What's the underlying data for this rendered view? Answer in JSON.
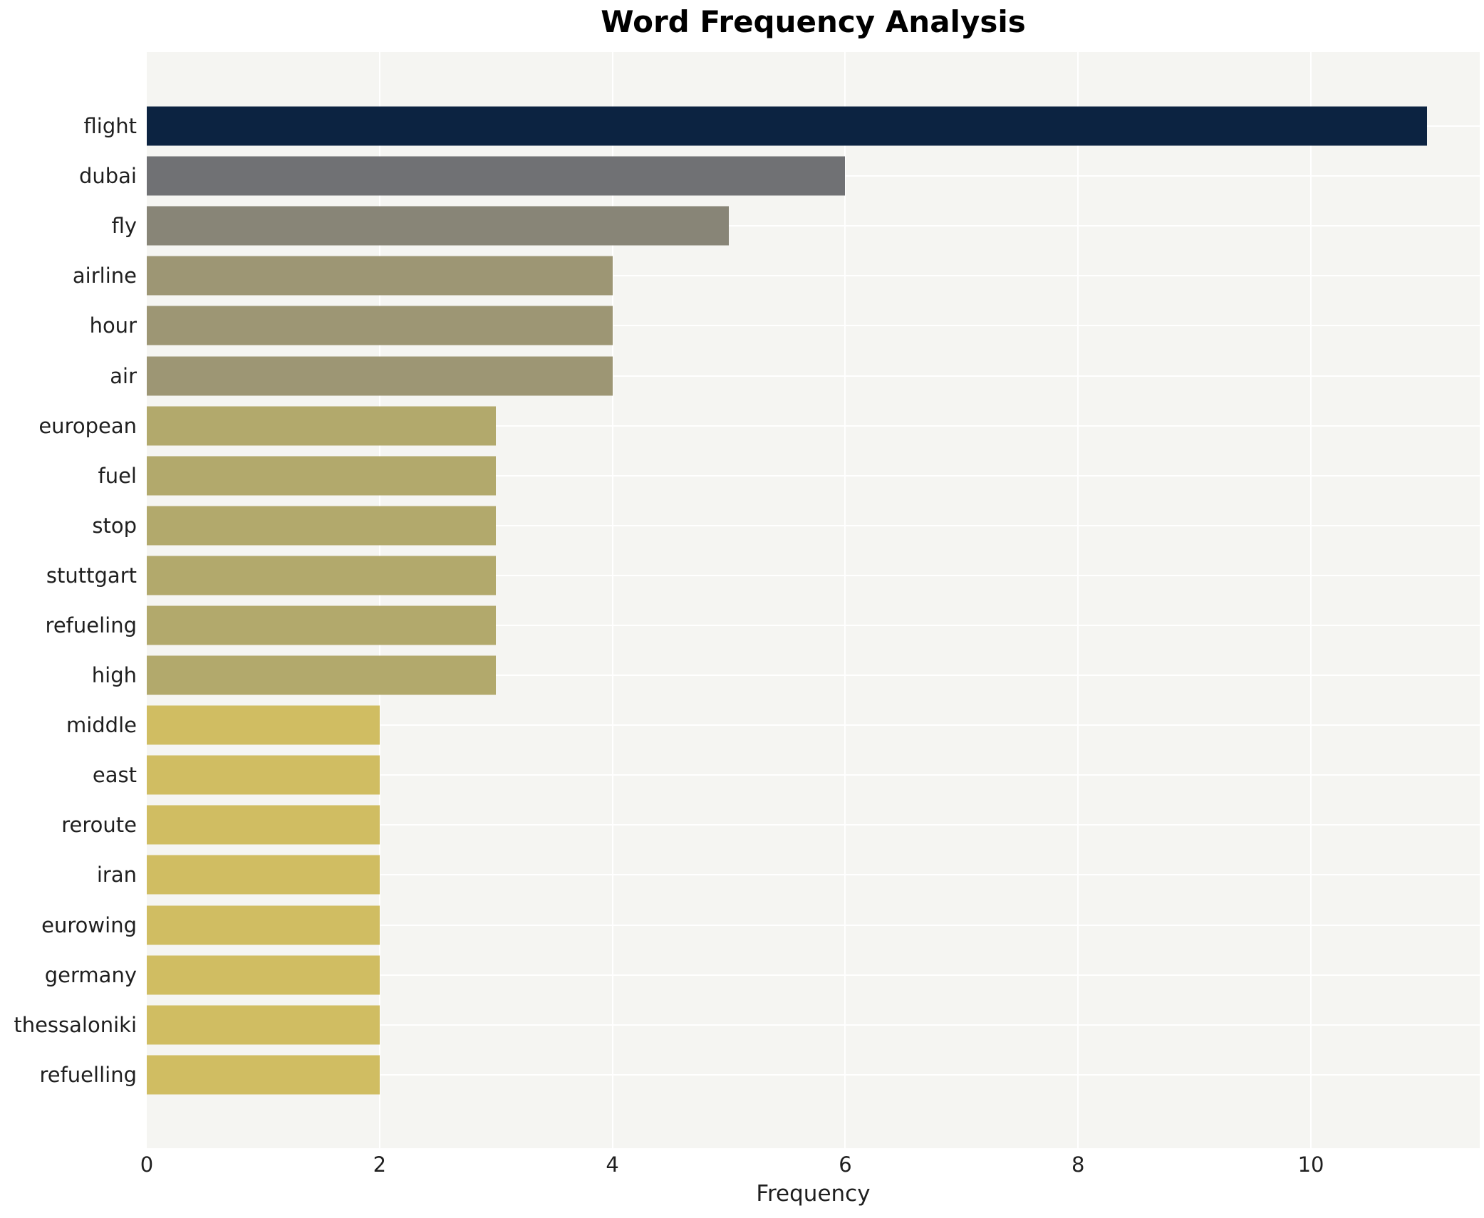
{
  "chart_data": {
    "type": "bar",
    "orientation": "horizontal",
    "title": "Word Frequency Analysis",
    "xlabel": "Frequency",
    "ylabel": "",
    "categories": [
      "flight",
      "dubai",
      "fly",
      "airline",
      "hour",
      "air",
      "european",
      "fuel",
      "stop",
      "stuttgart",
      "refueling",
      "high",
      "middle",
      "east",
      "reroute",
      "iran",
      "eurowing",
      "germany",
      "thessaloniki",
      "refuelling"
    ],
    "values": [
      11,
      6,
      5,
      4,
      4,
      4,
      3,
      3,
      3,
      3,
      3,
      3,
      2,
      2,
      2,
      2,
      2,
      2,
      2,
      2
    ],
    "xticks": [
      0,
      2,
      4,
      6,
      8,
      10
    ],
    "xlim": [
      0,
      11.45
    ],
    "grid": true,
    "legend": "none",
    "plot_background": "#f5f5f2",
    "grid_color": "#ffffff",
    "value_colors": {
      "11": "#0c2341",
      "6": "#707174",
      "5": "#888577",
      "4": "#9d9674",
      "3": "#b2a96c",
      "2": "#d0bd62"
    }
  }
}
